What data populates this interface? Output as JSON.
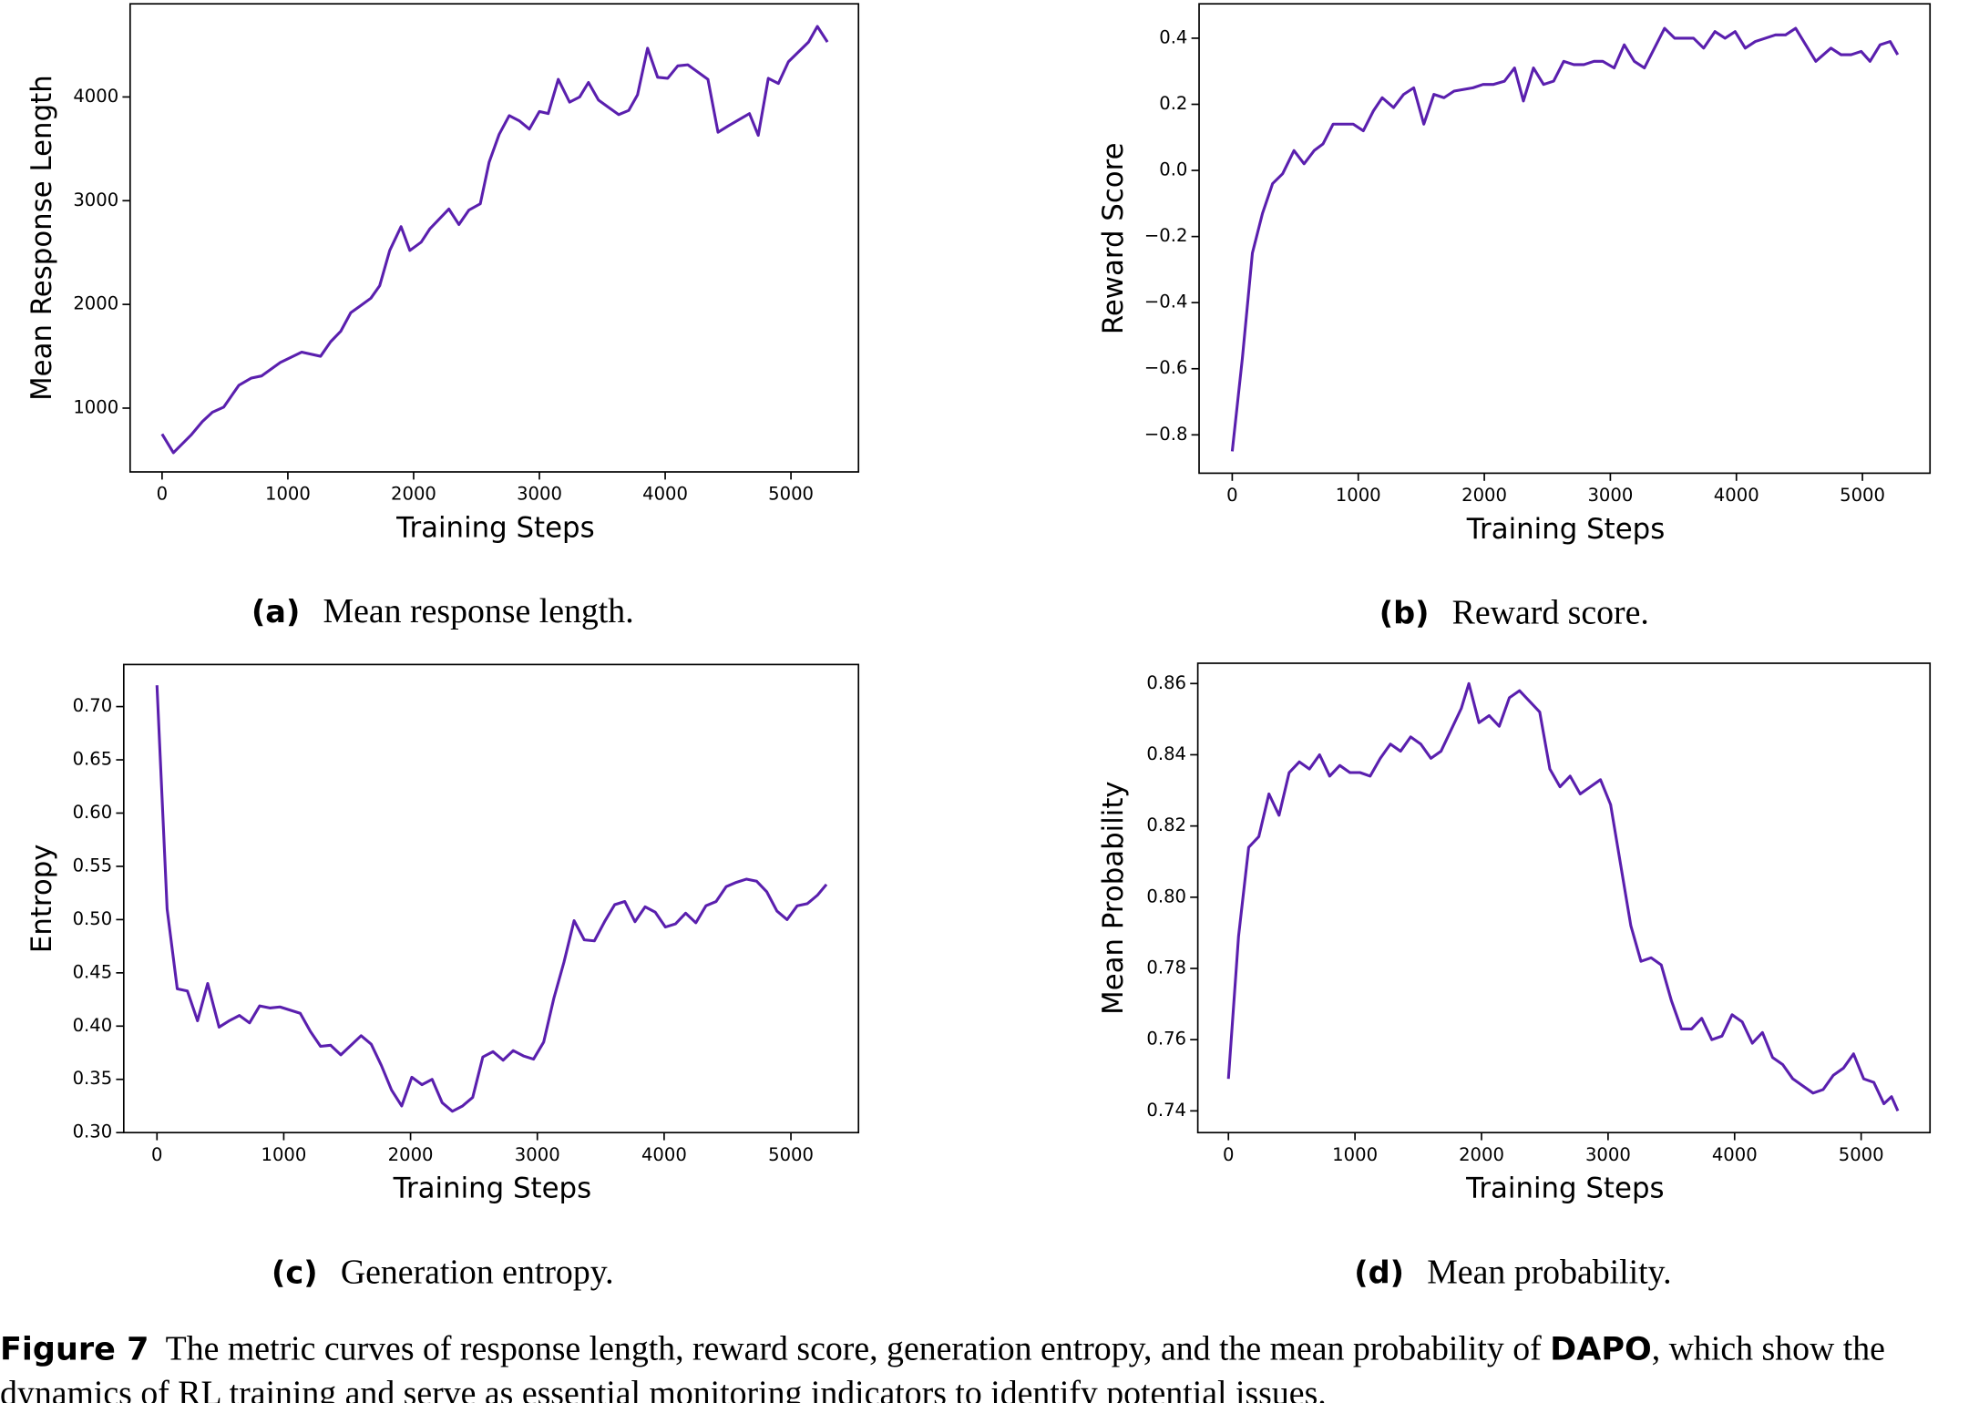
{
  "chart_data": [
    {
      "type": "line",
      "x_label": "Training Steps",
      "y_label": "Mean Response Length",
      "sub_label": "(a)",
      "sub_text": "Mean response length.",
      "color": "#5a1fae",
      "xlim": [
        -254,
        5537
      ],
      "ylim": [
        385,
        4898
      ],
      "xticks": [
        0,
        1000,
        2000,
        3000,
        4000,
        5000
      ],
      "yticks": [
        1000,
        2000,
        3000,
        4000
      ],
      "x": [
        0,
        90,
        230,
        320,
        400,
        490,
        610,
        710,
        790,
        940,
        1110,
        1260,
        1340,
        1420,
        1500,
        1570,
        1660,
        1730,
        1810,
        1900,
        1970,
        2060,
        2130,
        2280,
        2360,
        2440,
        2530,
        2600,
        2680,
        2760,
        2840,
        2920,
        3000,
        3070,
        3150,
        3240,
        3320,
        3390,
        3470,
        3550,
        3630,
        3710,
        3780,
        3860,
        3940,
        4020,
        4100,
        4180,
        4260,
        4340,
        4420,
        4500,
        4670,
        4740,
        4820,
        4900,
        4980,
        5140,
        5210,
        5290
      ],
      "values": [
        750,
        570,
        740,
        870,
        960,
        1010,
        1220,
        1290,
        1310,
        1440,
        1540,
        1500,
        1640,
        1740,
        1920,
        1980,
        2060,
        2180,
        2520,
        2750,
        2520,
        2600,
        2730,
        2920,
        2770,
        2910,
        2970,
        3370,
        3640,
        3820,
        3770,
        3690,
        3860,
        3840,
        4170,
        3950,
        4000,
        4140,
        3970,
        3900,
        3830,
        3870,
        4020,
        4470,
        4190,
        4180,
        4300,
        4310,
        4240,
        4170,
        3660,
        3720,
        3840,
        3630,
        4180,
        4130,
        4340,
        4530,
        4680,
        4530
      ]
    },
    {
      "type": "line",
      "x_label": "Training Steps",
      "y_label": "Reward Score",
      "sub_label": "(b)",
      "sub_text": "Reward score.",
      "color": "#5a1fae",
      "xlim": [
        -263,
        5536
      ],
      "ylim": [
        -0.916,
        0.504
      ],
      "xticks": [
        0,
        1000,
        2000,
        3000,
        4000,
        5000
      ],
      "yticks": [
        {
          "value": -0.8,
          "label": "−0.8"
        },
        {
          "value": -0.6,
          "label": "−0.6"
        },
        {
          "value": -0.4,
          "label": "−0.4"
        },
        {
          "value": -0.2,
          "label": "−0.2"
        },
        {
          "value": 0,
          "label": "0.0"
        },
        0.2,
        0.4
      ],
      "x": [
        0,
        80,
        160,
        240,
        320,
        400,
        490,
        570,
        650,
        720,
        800,
        880,
        960,
        1040,
        1120,
        1190,
        1280,
        1360,
        1440,
        1520,
        1600,
        1680,
        1760,
        1910,
        1990,
        2070,
        2160,
        2240,
        2310,
        2390,
        2470,
        2550,
        2630,
        2710,
        2790,
        2870,
        2940,
        3030,
        3110,
        3190,
        3270,
        3350,
        3430,
        3510,
        3660,
        3740,
        3830,
        3910,
        3990,
        4070,
        4150,
        4230,
        4310,
        4390,
        4470,
        4550,
        4630,
        4750,
        4830,
        4910,
        4990,
        5060,
        5140,
        5220,
        5280
      ],
      "values": [
        -0.85,
        -0.57,
        -0.25,
        -0.13,
        -0.04,
        -0.01,
        0.06,
        0.02,
        0.06,
        0.08,
        0.14,
        0.14,
        0.14,
        0.12,
        0.18,
        0.22,
        0.19,
        0.23,
        0.25,
        0.14,
        0.23,
        0.22,
        0.24,
        0.25,
        0.26,
        0.26,
        0.27,
        0.31,
        0.21,
        0.31,
        0.26,
        0.27,
        0.33,
        0.32,
        0.32,
        0.33,
        0.33,
        0.31,
        0.38,
        0.33,
        0.31,
        0.37,
        0.43,
        0.4,
        0.4,
        0.37,
        0.42,
        0.4,
        0.42,
        0.37,
        0.39,
        0.4,
        0.41,
        0.41,
        0.43,
        0.38,
        0.33,
        0.37,
        0.35,
        0.35,
        0.36,
        0.33,
        0.38,
        0.39,
        0.35
      ]
    },
    {
      "type": "line",
      "x_label": "Training Steps",
      "y_label": "Entropy",
      "sub_label": "(c)",
      "sub_text": "Generation entropy.",
      "color": "#5a1fae",
      "xlim": [
        -262,
        5533
      ],
      "ylim": [
        0.3,
        0.7395
      ],
      "xticks": [
        0,
        1000,
        2000,
        3000,
        4000,
        5000
      ],
      "yticks": [
        {
          "value": 0.3,
          "label": "0.30"
        },
        0.35,
        {
          "value": 0.4,
          "label": "0.40"
        },
        0.45,
        {
          "value": 0.5,
          "label": "0.50"
        },
        0.55,
        {
          "value": 0.6,
          "label": "0.60"
        },
        0.65,
        {
          "value": 0.7,
          "label": "0.70"
        }
      ],
      "x": [
        0,
        80,
        160,
        240,
        320,
        400,
        490,
        570,
        650,
        730,
        810,
        890,
        970,
        1050,
        1130,
        1210,
        1290,
        1370,
        1450,
        1530,
        1610,
        1690,
        1770,
        1850,
        1930,
        2010,
        2090,
        2170,
        2250,
        2330,
        2410,
        2490,
        2570,
        2650,
        2730,
        2810,
        2890,
        2970,
        3050,
        3130,
        3210,
        3290,
        3370,
        3450,
        3530,
        3610,
        3690,
        3770,
        3850,
        3930,
        4010,
        4090,
        4170,
        4250,
        4330,
        4410,
        4490,
        4570,
        4650,
        4730,
        4810,
        4890,
        4970,
        5050,
        5130,
        5210,
        5280
      ],
      "values": [
        0.72,
        0.51,
        0.435,
        0.433,
        0.405,
        0.44,
        0.399,
        0.405,
        0.41,
        0.403,
        0.419,
        0.417,
        0.418,
        0.415,
        0.412,
        0.395,
        0.381,
        0.382,
        0.373,
        0.382,
        0.391,
        0.383,
        0.363,
        0.34,
        0.325,
        0.352,
        0.345,
        0.35,
        0.328,
        0.32,
        0.325,
        0.333,
        0.371,
        0.376,
        0.368,
        0.377,
        0.372,
        0.369,
        0.385,
        0.426,
        0.46,
        0.499,
        0.481,
        0.48,
        0.498,
        0.514,
        0.517,
        0.498,
        0.512,
        0.507,
        0.493,
        0.496,
        0.506,
        0.497,
        0.513,
        0.517,
        0.531,
        0.535,
        0.538,
        0.536,
        0.526,
        0.508,
        0.5,
        0.513,
        0.515,
        0.523,
        0.533
      ]
    },
    {
      "type": "line",
      "x_label": "Training Steps",
      "y_label": "Mean Probability",
      "sub_label": "(d)",
      "sub_text": "Mean probability.",
      "color": "#5a1fae",
      "xlim": [
        -242,
        5544
      ],
      "ylim": [
        0.7339,
        0.8657
      ],
      "xticks": [
        0,
        1000,
        2000,
        3000,
        4000,
        5000
      ],
      "yticks": [
        0.74,
        0.76,
        0.78,
        {
          "value": 0.8,
          "label": "0.80"
        },
        0.82,
        0.84,
        0.86
      ],
      "x": [
        0,
        80,
        160,
        240,
        320,
        400,
        480,
        560,
        640,
        720,
        800,
        880,
        960,
        1040,
        1120,
        1200,
        1280,
        1360,
        1440,
        1520,
        1600,
        1680,
        1760,
        1840,
        1900,
        1980,
        2060,
        2140,
        2220,
        2300,
        2380,
        2460,
        2540,
        2620,
        2700,
        2780,
        2860,
        2940,
        3020,
        3100,
        3180,
        3260,
        3340,
        3420,
        3500,
        3580,
        3660,
        3740,
        3820,
        3900,
        3980,
        4060,
        4140,
        4220,
        4300,
        4380,
        4460,
        4540,
        4620,
        4700,
        4780,
        4860,
        4940,
        5020,
        5100,
        5180,
        5240,
        5290
      ],
      "values": [
        0.749,
        0.789,
        0.814,
        0.817,
        0.829,
        0.823,
        0.835,
        0.838,
        0.836,
        0.84,
        0.834,
        0.837,
        0.835,
        0.835,
        0.834,
        0.839,
        0.843,
        0.841,
        0.845,
        0.843,
        0.839,
        0.841,
        0.847,
        0.853,
        0.86,
        0.849,
        0.851,
        0.848,
        0.856,
        0.858,
        0.855,
        0.852,
        0.836,
        0.831,
        0.834,
        0.829,
        0.831,
        0.833,
        0.826,
        0.809,
        0.792,
        0.782,
        0.783,
        0.781,
        0.771,
        0.763,
        0.763,
        0.766,
        0.76,
        0.761,
        0.767,
        0.765,
        0.759,
        0.762,
        0.755,
        0.753,
        0.749,
        0.747,
        0.745,
        0.746,
        0.75,
        0.752,
        0.756,
        0.749,
        0.748,
        0.742,
        0.744,
        0.74
      ]
    }
  ],
  "figure_caption": {
    "label": "Figure 7",
    "text": "The metric curves of response length, reward score, generation entropy, and the mean probability of",
    "bold": "DAPO",
    "text_end": ", which show the dynamics of RL training and serve as essential monitoring indicators to identify potential issues."
  }
}
